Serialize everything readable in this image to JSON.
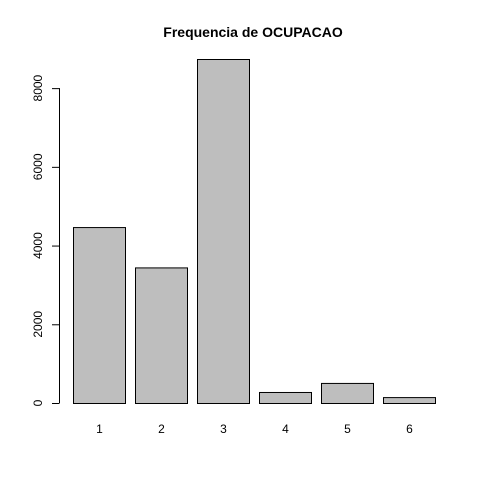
{
  "chart_data": {
    "type": "bar",
    "title": "Frequencia de OCUPACAO",
    "xlabel": "",
    "ylabel": "",
    "categories": [
      "1",
      "2",
      "3",
      "4",
      "5",
      "6"
    ],
    "values": [
      4470,
      3445,
      8740,
      280,
      510,
      150
    ],
    "ylim": [
      0,
      8740
    ],
    "yticks": [
      0,
      2000,
      4000,
      6000,
      8000
    ],
    "ytick_labels": [
      "0",
      "2000",
      "4000",
      "6000",
      "8000"
    ],
    "bar_fill": "#bebebe",
    "bar_stroke": "#000000",
    "grid": false,
    "legend": "none"
  }
}
